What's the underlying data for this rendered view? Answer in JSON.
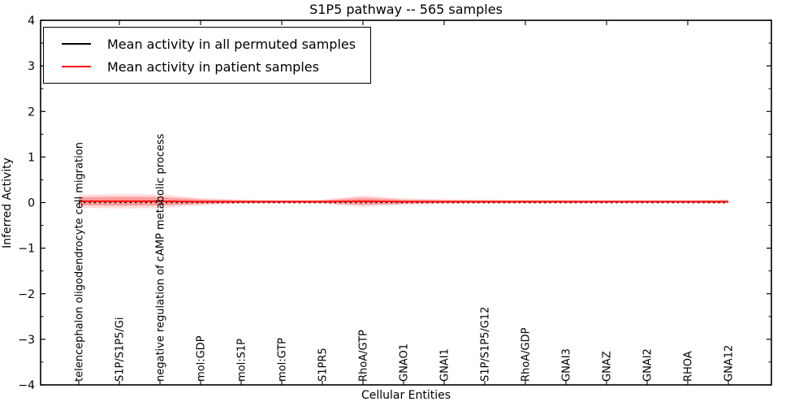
{
  "title": "S1P5 pathway -- 565 samples",
  "axes": {
    "xlabel": "Cellular Entities",
    "ylabel": "Inferred Activity"
  },
  "chart_data": {
    "type": "line",
    "title": "S1P5 pathway -- 565 samples",
    "xlabel": "Cellular Entities",
    "ylabel": "Inferred Activity",
    "ylim": [
      -4,
      4
    ],
    "ytick_values": [
      4,
      3,
      2,
      1,
      0,
      -1,
      -2,
      -3,
      -4
    ],
    "ytick_labels": [
      "4",
      "3",
      "2",
      "1",
      "0",
      "−1",
      "−2",
      "−3",
      "−4"
    ],
    "grid": false,
    "x_tick_rotation": 90,
    "legend_position": "upper left",
    "categories": [
      "telencephalon oligodendrocyte cell migration",
      "S1P/S1P5/Gi",
      "negative regulation of cAMP metabolic process",
      "mol:GDP",
      "mol:S1P",
      "mol:GTP",
      "S1PR5",
      "RhoA/GTP",
      "GNAO1",
      "GNAI1",
      "S1P/S1P5/G12",
      "RhoA/GDP",
      "GNAI3",
      "GNAZ",
      "GNAI2",
      "RHOA",
      "GNA12"
    ],
    "series": [
      {
        "name": "Mean activity in all permuted samples",
        "color": "#000000",
        "linestyle": "dotted",
        "values": [
          0,
          0,
          0,
          0,
          0,
          0,
          0,
          0,
          0,
          0,
          0,
          0,
          0,
          0,
          0,
          0,
          0
        ]
      },
      {
        "name": "Mean activity in patient samples",
        "color": "#ff0000",
        "linestyle": "solid",
        "values": [
          0.03,
          0.03,
          0.03,
          0.02,
          0.02,
          0.02,
          0.02,
          0.03,
          0.02,
          0.02,
          0.02,
          0.02,
          0.02,
          0.02,
          0.02,
          0.02,
          0.02
        ]
      }
    ],
    "band": {
      "series": "Mean activity in patient samples",
      "color": "#ff0000",
      "alpha": 0.28,
      "half_widths": [
        0.09,
        0.1,
        0.095,
        0.05,
        0.028,
        0.025,
        0.028,
        0.08,
        0.045,
        0.032,
        0.028,
        0.026,
        0.026,
        0.024,
        0.024,
        0.024,
        0.03
      ]
    }
  }
}
